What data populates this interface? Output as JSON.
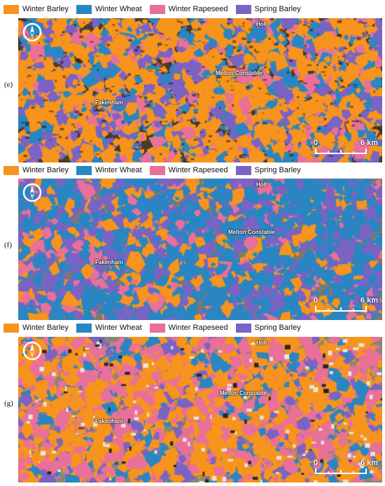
{
  "legend_items": [
    {
      "label": "Winter Barley",
      "color": "#f7941d"
    },
    {
      "label": "Winter Wheat",
      "color": "#2a86c2"
    },
    {
      "label": "Winter Rapeseed",
      "color": "#e8709a"
    },
    {
      "label": "Spring Barley",
      "color": "#7b63c4"
    }
  ],
  "panels": [
    {
      "label": "(e)",
      "places": {
        "holt": "Holt",
        "melton": "Melton Constable",
        "fakenham": "Fakenham"
      },
      "scale": {
        "start": "0",
        "end": "6 km"
      }
    },
    {
      "label": "(f)",
      "places": {
        "holt": "Holt",
        "melton": "Melton Constable",
        "fakenham": "Fakenham"
      },
      "scale": {
        "start": "0",
        "end": "6 km"
      }
    },
    {
      "label": "(g)",
      "places": {
        "holt": "Holt",
        "melton": "Melton Constable",
        "fakenham": "Fakenham"
      },
      "scale": {
        "start": "0",
        "end": "6 km"
      }
    }
  ]
}
